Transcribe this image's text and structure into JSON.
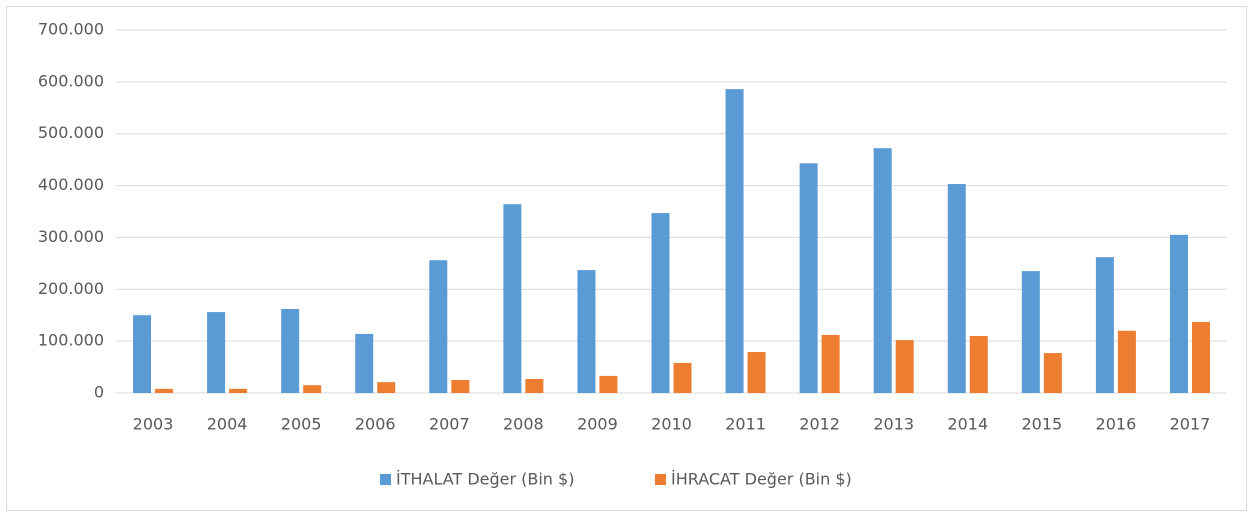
{
  "chart_data": {
    "type": "bar",
    "categories": [
      "2003",
      "2004",
      "2005",
      "2006",
      "2007",
      "2008",
      "2009",
      "2010",
      "2011",
      "2012",
      "2013",
      "2014",
      "2015",
      "2016",
      "2017"
    ],
    "series": [
      {
        "name": "İTHALAT Değer (Bin $)",
        "color": "#5b9bd5",
        "values": [
          150000,
          156000,
          162000,
          114000,
          256000,
          364000,
          237000,
          347000,
          586000,
          443000,
          472000,
          403000,
          235000,
          262000,
          305000
        ]
      },
      {
        "name": "İHRACAT Değer (Bin $)",
        "color": "#ed7d31",
        "values": [
          8000,
          8000,
          15000,
          21000,
          25000,
          27000,
          33000,
          58000,
          79000,
          112000,
          102000,
          110000,
          77000,
          120000,
          137000
        ]
      }
    ],
    "ylim": [
      0,
      700000
    ],
    "yticks": [
      0,
      {
        "value": 100000,
        "label": "100.000"
      },
      {
        "value": 200000,
        "label": "200.000"
      },
      {
        "value": 300000,
        "label": "300.000"
      },
      {
        "value": 400000,
        "label": "400.000"
      },
      {
        "value": 500000,
        "label": "500.000"
      },
      {
        "value": 600000,
        "label": "600.000"
      },
      {
        "value": 700000,
        "label": "700.000"
      }
    ],
    "grid": true,
    "legend": "bottom"
  }
}
